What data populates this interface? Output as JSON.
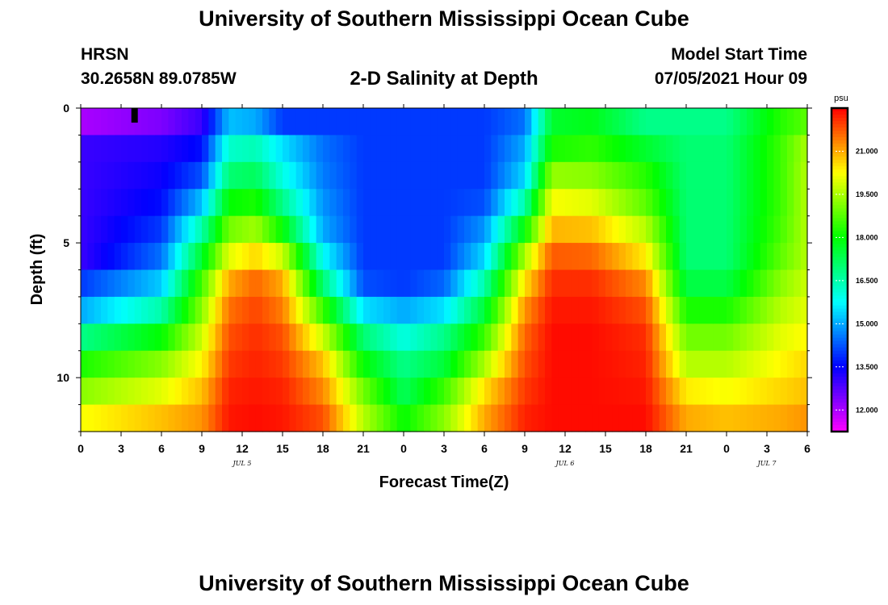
{
  "header": {
    "title_top": "University of Southern Mississippi Ocean Cube",
    "title_bottom": "University of Southern Mississippi Ocean Cube",
    "station": "HRSN",
    "coords": "30.2658N  89.0785W",
    "plot_title": "2-D Salinity at Depth",
    "model_start_label": "Model Start Time",
    "model_start_value": "07/05/2021 Hour 09"
  },
  "chart_data": {
    "type": "heatmap",
    "title": "2-D Salinity at Depth",
    "xlabel": "Forecast Time(Z)",
    "ylabel": "Depth (ft)",
    "x_tick_labels": [
      "0",
      "3",
      "6",
      "9",
      "12",
      "15",
      "18",
      "21",
      "0",
      "3",
      "6",
      "9",
      "12",
      "15",
      "18",
      "21",
      "0",
      "3",
      "6"
    ],
    "x_range_hours": [
      0,
      54
    ],
    "date_labels": [
      {
        "label": "JUL 5",
        "hour": 12
      },
      {
        "label": "JUL 6",
        "hour": 36
      },
      {
        "label": "JUL 7",
        "hour": 51
      }
    ],
    "y_tick_labels": [
      "0",
      "5",
      "10"
    ],
    "y_range_ft": [
      0,
      12
    ],
    "depth_levels_ft": [
      0.5,
      1.5,
      2.5,
      3.5,
      4.5,
      5.5,
      6.5,
      7.5,
      8.5,
      9.5,
      10.5,
      11.5
    ],
    "colorbar": {
      "unit": "psu",
      "range": [
        11.25,
        22.5
      ],
      "tick_labels": [
        "12.000",
        "13.500",
        "15.000",
        "16.500",
        "18.000",
        "19.500",
        "21.000"
      ],
      "tick_values": [
        12.0,
        13.5,
        15.0,
        16.5,
        18.0,
        19.5,
        21.0
      ]
    },
    "model_start_marker_hour": 4,
    "salinity_psu_profiles": {
      "note": "salinity at each depth level (0.5..11.5 ft), keyframes by forecast hour",
      "keyframes": [
        {
          "hour": 0,
          "values": [
            12.0,
            13.0,
            13.0,
            13.0,
            13.0,
            13.0,
            14.0,
            15.0,
            16.8,
            18.2,
            19.2,
            20.2
          ]
        },
        {
          "hour": 6,
          "values": [
            12.4,
            13.2,
            13.4,
            13.6,
            14.0,
            14.5,
            15.3,
            16.5,
            18.0,
            19.2,
            20.0,
            20.8
          ]
        },
        {
          "hour": 9,
          "values": [
            13.0,
            13.6,
            14.2,
            15.2,
            16.5,
            17.6,
            18.6,
            19.2,
            19.8,
            20.3,
            20.8,
            21.2
          ]
        },
        {
          "hour": 11,
          "values": [
            15.2,
            16.2,
            17.0,
            18.0,
            19.0,
            20.0,
            21.0,
            21.5,
            21.8,
            22.0,
            22.2,
            22.3
          ]
        },
        {
          "hour": 13,
          "values": [
            15.0,
            16.4,
            17.2,
            18.2,
            19.4,
            20.6,
            21.6,
            21.9,
            22.1,
            22.2,
            22.3,
            22.4
          ]
        },
        {
          "hour": 15,
          "values": [
            14.0,
            15.5,
            16.0,
            16.8,
            18.0,
            19.8,
            21.0,
            21.4,
            21.8,
            22.0,
            22.2,
            22.3
          ]
        },
        {
          "hour": 18,
          "values": [
            14.0,
            14.5,
            14.6,
            14.8,
            15.0,
            15.8,
            17.0,
            18.5,
            19.8,
            20.8,
            21.3,
            21.8
          ]
        },
        {
          "hour": 21,
          "values": [
            14.0,
            14.0,
            14.0,
            14.0,
            14.0,
            14.0,
            14.2,
            15.5,
            17.0,
            18.0,
            19.0,
            19.6
          ]
        },
        {
          "hour": 24,
          "values": [
            14.0,
            14.0,
            14.0,
            14.0,
            14.0,
            14.0,
            14.0,
            15.0,
            16.0,
            16.8,
            17.2,
            18.0
          ]
        },
        {
          "hour": 27,
          "values": [
            14.0,
            14.0,
            14.0,
            14.0,
            14.0,
            14.0,
            14.4,
            15.5,
            16.8,
            17.5,
            18.5,
            19.2
          ]
        },
        {
          "hour": 30,
          "values": [
            14.0,
            14.0,
            14.0,
            14.2,
            14.8,
            15.4,
            16.5,
            17.5,
            18.5,
            19.5,
            20.5,
            21.0
          ]
        },
        {
          "hour": 33,
          "values": [
            14.5,
            15.0,
            15.4,
            16.5,
            18.0,
            19.5,
            20.5,
            21.2,
            21.6,
            21.8,
            22.0,
            22.2
          ]
        },
        {
          "hour": 35,
          "values": [
            17.6,
            18.2,
            19.3,
            20.2,
            20.9,
            21.7,
            22.1,
            22.3,
            22.4,
            22.4,
            22.4,
            22.4
          ]
        },
        {
          "hour": 38,
          "values": [
            17.8,
            18.4,
            19.2,
            20.0,
            20.8,
            21.6,
            22.1,
            22.3,
            22.4,
            22.4,
            22.4,
            22.4
          ]
        },
        {
          "hour": 42,
          "values": [
            16.8,
            17.6,
            18.3,
            18.8,
            19.6,
            20.4,
            21.3,
            21.8,
            22.1,
            22.2,
            22.3,
            22.4
          ]
        },
        {
          "hour": 45,
          "values": [
            16.8,
            17.0,
            17.0,
            17.0,
            17.0,
            17.0,
            17.4,
            18.2,
            19.0,
            19.6,
            20.4,
            21.0
          ]
        },
        {
          "hour": 48,
          "values": [
            16.8,
            17.0,
            17.0,
            17.0,
            17.0,
            17.0,
            17.4,
            18.2,
            19.0,
            19.6,
            20.2,
            20.8
          ]
        },
        {
          "hour": 52,
          "values": [
            18.3,
            18.5,
            18.5,
            18.5,
            18.6,
            18.8,
            19.2,
            19.6,
            20.0,
            20.3,
            20.6,
            21.0
          ]
        },
        {
          "hour": 54,
          "values": [
            18.8,
            19.5,
            19.6,
            19.6,
            19.6,
            19.6,
            19.8,
            20.0,
            20.3,
            20.6,
            20.8,
            21.2
          ]
        }
      ]
    }
  }
}
